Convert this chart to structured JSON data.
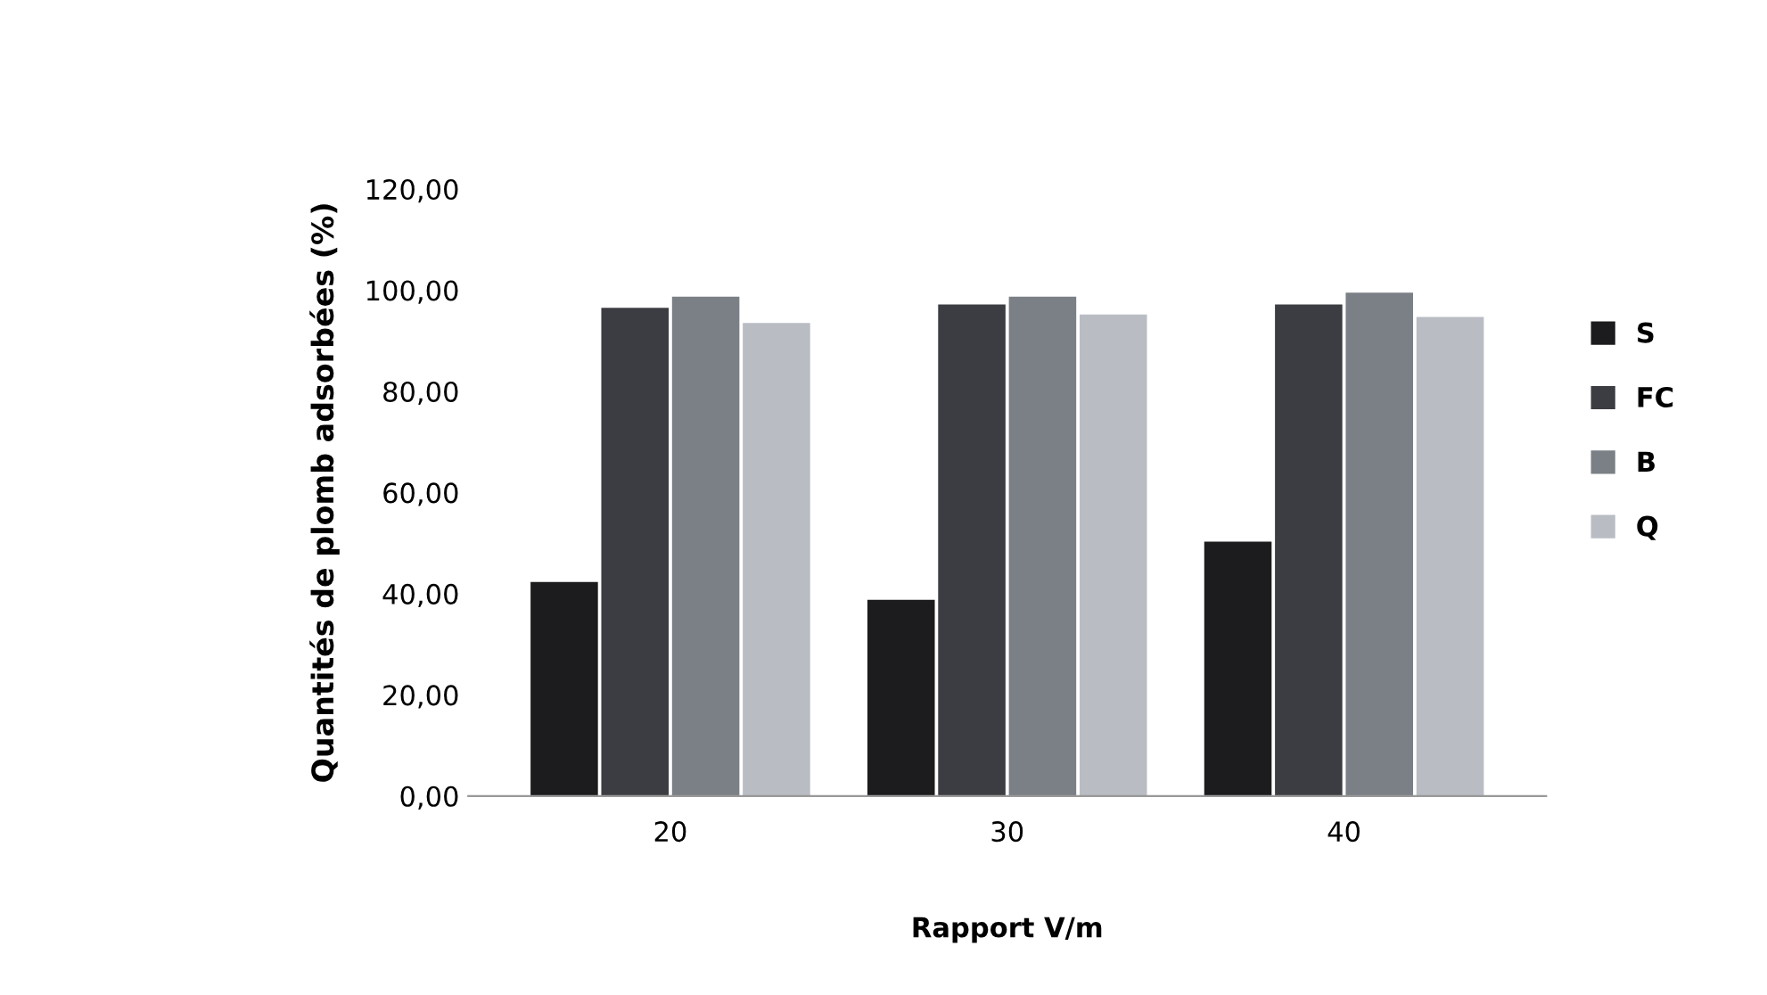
{
  "chart_data": {
    "type": "bar",
    "xlabel": "Rapport V/m",
    "ylabel": "Quantités de plomb adsorbées (%)",
    "categories": [
      "20",
      "30",
      "40"
    ],
    "series": [
      {
        "name": "S",
        "color": "#1c1c1e",
        "values": [
          42.3,
          38.8,
          50.3
        ]
      },
      {
        "name": "FC",
        "color": "#3c3d42",
        "values": [
          96.5,
          97.2,
          97.2
        ]
      },
      {
        "name": "B",
        "color": "#7b8086",
        "values": [
          98.7,
          98.7,
          99.5
        ]
      },
      {
        "name": "Q",
        "color": "#b9bdc3",
        "values": [
          93.5,
          95.2,
          94.7
        ]
      }
    ],
    "ylim": [
      0,
      120
    ],
    "yticks": [
      {
        "value": 0,
        "label": "0,00"
      },
      {
        "value": 20,
        "label": "20,00"
      },
      {
        "value": 40,
        "label": "40,00"
      },
      {
        "value": 60,
        "label": "60,00"
      },
      {
        "value": 80,
        "label": "80,00"
      },
      {
        "value": 100,
        "label": "100,00"
      },
      {
        "value": 120,
        "label": "120,00"
      }
    ],
    "grid": false,
    "legend": "right"
  }
}
